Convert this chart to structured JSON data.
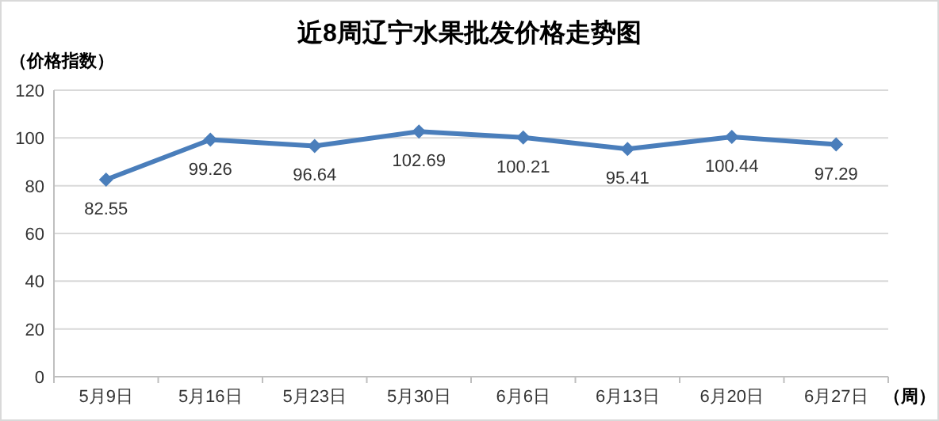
{
  "chart_data": {
    "type": "line",
    "title": "近8周辽宁水果批发价格走势图",
    "ylabel": "（价格指数）",
    "xlabel": "（周）",
    "categories": [
      "5月9日",
      "5月16日",
      "5月23日",
      "5月30日",
      "6月6日",
      "6月13日",
      "6月20日",
      "6月27日"
    ],
    "values": [
      82.55,
      99.26,
      96.64,
      102.69,
      100.21,
      95.41,
      100.44,
      97.29
    ],
    "color": "#4a7ebb",
    "ylim": [
      0,
      120
    ],
    "yticks": [
      0,
      20,
      40,
      60,
      80,
      100,
      120
    ],
    "grid": "y",
    "marker": "diamond",
    "line_style": "solid",
    "data_labels": true
  }
}
